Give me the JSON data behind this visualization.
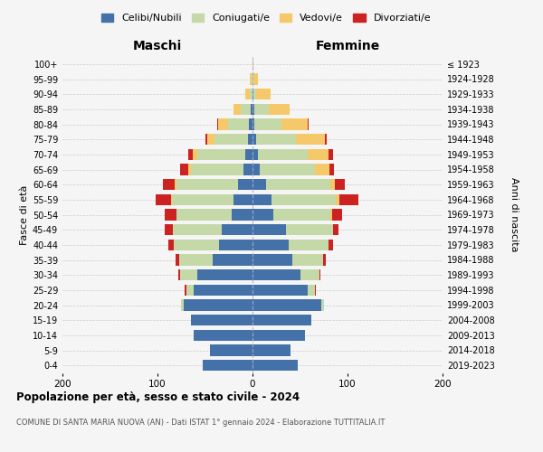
{
  "age_groups": [
    "0-4",
    "5-9",
    "10-14",
    "15-19",
    "20-24",
    "25-29",
    "30-34",
    "35-39",
    "40-44",
    "45-49",
    "50-54",
    "55-59",
    "60-64",
    "65-69",
    "70-74",
    "75-79",
    "80-84",
    "85-89",
    "90-94",
    "95-99",
    "100+"
  ],
  "birth_years": [
    "2019-2023",
    "2014-2018",
    "2009-2013",
    "2004-2008",
    "1999-2003",
    "1994-1998",
    "1989-1993",
    "1984-1988",
    "1979-1983",
    "1974-1978",
    "1969-1973",
    "1964-1968",
    "1959-1963",
    "1954-1958",
    "1949-1953",
    "1944-1948",
    "1939-1943",
    "1934-1938",
    "1929-1933",
    "1924-1928",
    "≤ 1923"
  ],
  "colors": {
    "celibi": "#4472a8",
    "coniugati": "#c5d9a8",
    "vedovi": "#f5c96a",
    "divorziati": "#cc2222"
  },
  "maschi": {
    "celibi": [
      52,
      45,
      62,
      65,
      72,
      62,
      58,
      42,
      35,
      32,
      22,
      20,
      15,
      10,
      8,
      5,
      4,
      2,
      0,
      0,
      0
    ],
    "coniugati": [
      0,
      0,
      0,
      0,
      3,
      8,
      18,
      35,
      48,
      52,
      58,
      65,
      65,
      55,
      50,
      35,
      22,
      10,
      3,
      1,
      0
    ],
    "vedovi": [
      0,
      0,
      0,
      0,
      0,
      0,
      0,
      0,
      0,
      0,
      0,
      1,
      2,
      3,
      5,
      8,
      10,
      8,
      5,
      2,
      0
    ],
    "divorziati": [
      0,
      0,
      0,
      0,
      0,
      1,
      2,
      4,
      6,
      8,
      12,
      16,
      12,
      8,
      5,
      2,
      1,
      0,
      0,
      0,
      0
    ]
  },
  "femmine": {
    "celibi": [
      48,
      40,
      55,
      62,
      72,
      58,
      50,
      42,
      38,
      35,
      22,
      20,
      14,
      8,
      6,
      4,
      2,
      2,
      1,
      0,
      0
    ],
    "coniugati": [
      0,
      0,
      0,
      0,
      3,
      8,
      20,
      32,
      42,
      50,
      60,
      68,
      68,
      58,
      52,
      42,
      28,
      15,
      3,
      1,
      0
    ],
    "vedovi": [
      0,
      0,
      0,
      0,
      0,
      0,
      0,
      0,
      0,
      0,
      2,
      3,
      5,
      15,
      22,
      30,
      28,
      22,
      15,
      5,
      1
    ],
    "divorziati": [
      0,
      0,
      0,
      0,
      0,
      1,
      1,
      3,
      5,
      5,
      10,
      20,
      10,
      5,
      5,
      2,
      1,
      0,
      0,
      0,
      0
    ]
  },
  "xlim": 200,
  "title": "Popolazione per età, sesso e stato civile - 2024",
  "subtitle": "COMUNE DI SANTA MARIA NUOVA (AN) - Dati ISTAT 1° gennaio 2024 - Elaborazione TUTTITALIA.IT",
  "xlabel_left": "Maschi",
  "xlabel_right": "Femmine",
  "ylabel_left": "Fasce di età",
  "ylabel_right": "Anni di nascita",
  "legend_labels": [
    "Celibi/Nubili",
    "Coniugati/e",
    "Vedovi/e",
    "Divorziati/e"
  ],
  "bg_color": "#f5f5f5",
  "bar_height": 0.75
}
